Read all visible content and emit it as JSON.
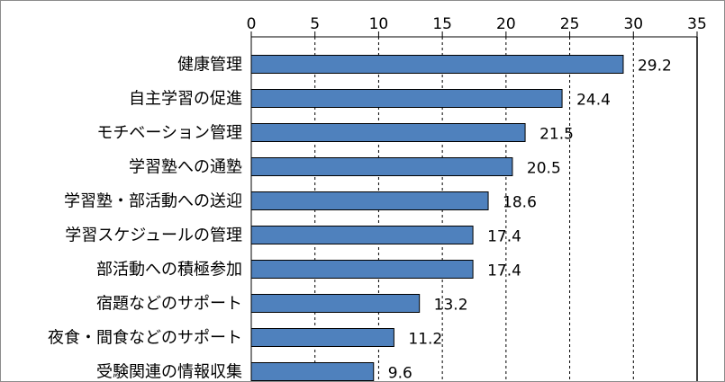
{
  "chart_data": {
    "type": "bar",
    "orientation": "horizontal",
    "categories": [
      "健康管理",
      "自主学習の促進",
      "モチベーション管理",
      "学習塾への通塾",
      "学習塾・部活動への送迎",
      "学習スケジュールの管理",
      "部活動への積極参加",
      "宿題などのサポート",
      "夜食・間食などのサポート",
      "受験関連の情報収集"
    ],
    "values": [
      29.2,
      24.4,
      21.5,
      20.5,
      18.6,
      17.4,
      17.4,
      13.2,
      11.2,
      9.6
    ],
    "value_labels": [
      "29.2",
      "24.4",
      "21.5",
      "20.5",
      "18.6",
      "17.4",
      "17.4",
      "13.2",
      "11.2",
      "9.6"
    ],
    "xlim": [
      0,
      35
    ],
    "xticks": [
      "0",
      "5",
      "10",
      "15",
      "20",
      "25",
      "30",
      "35"
    ],
    "xtick_values": [
      0,
      5,
      10,
      15,
      20,
      25,
      30,
      35
    ],
    "axis_position": "top",
    "grid": "vertical dashed",
    "title": "",
    "xlabel": "",
    "ylabel": "",
    "colors": {
      "bar_fill": "#4f81bd",
      "bar_stroke": "#000000",
      "grid": "#000000",
      "frame": "#8c8c8c"
    }
  }
}
